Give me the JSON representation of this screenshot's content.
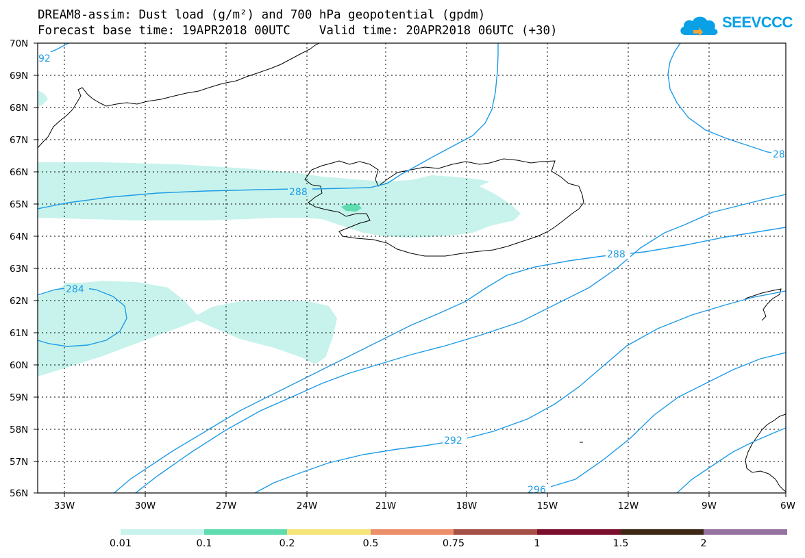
{
  "title": {
    "line1": "DREAM8-assim: Dust load (g/m²) and 700 hPa geopotential (gpdm)",
    "line2": "Forecast base time: 19APR2018 00UTC    Valid time: 20APR2018 06UTC (+30)"
  },
  "logo": {
    "text": "SEEVCCC",
    "icon": "cloud-logo-icon",
    "color": "#0aa0e6"
  },
  "map": {
    "lat_labels": [
      "70N",
      "69N",
      "68N",
      "67N",
      "66N",
      "65N",
      "64N",
      "63N",
      "62N",
      "61N",
      "60N",
      "59N",
      "58N",
      "57N",
      "56N"
    ],
    "lon_labels": [
      "33W",
      "30W",
      "27W",
      "24W",
      "21W",
      "18W",
      "15W",
      "12W",
      "9W",
      "6W"
    ],
    "lat_range": [
      56,
      70
    ],
    "lon_range": [
      -34.5,
      -6
    ],
    "grid": true,
    "contour_color": "#1e9be6",
    "contour_labels": [
      "92",
      "288",
      "284",
      "288",
      "28",
      "292",
      "296"
    ],
    "dust_fill_color": "#c7f3ec",
    "dust_core_color": "#5fdcb0"
  },
  "colorbar": {
    "labels": [
      "0.01",
      "0.1",
      "0.2",
      "0.5",
      "0.75",
      "1",
      "1.5",
      "2"
    ],
    "colors": [
      "#c7f3ec",
      "#5fdcb0",
      "#f4e67a",
      "#eb8f6a",
      "#a55046",
      "#7a0f2d",
      "#3c2814",
      "#9672a0"
    ]
  }
}
